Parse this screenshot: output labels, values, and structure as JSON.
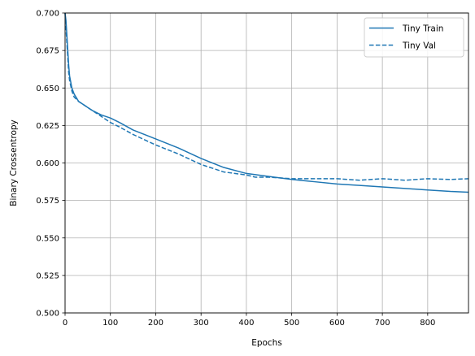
{
  "chart_data": {
    "type": "line",
    "title": "",
    "xlabel": "Epochs",
    "ylabel": "Binary Crossentropy",
    "xlim": [
      0,
      890
    ],
    "ylim": [
      0.5,
      0.7
    ],
    "xticks": [
      0,
      100,
      200,
      300,
      400,
      500,
      600,
      700,
      800
    ],
    "yticks": [
      0.5,
      0.525,
      0.55,
      0.575,
      0.6,
      0.625,
      0.65,
      0.675,
      0.7
    ],
    "xtick_labels": [
      "0",
      "100",
      "200",
      "300",
      "400",
      "500",
      "600",
      "700",
      "800"
    ],
    "ytick_labels": [
      "0.500",
      "0.525",
      "0.550",
      "0.575",
      "0.600",
      "0.625",
      "0.650",
      "0.675",
      "0.700"
    ],
    "grid": true,
    "legend_position": "top-right",
    "series": [
      {
        "name": "Tiny Train",
        "style": "solid",
        "color": "#1f77b4",
        "x": [
          0,
          2,
          4,
          6,
          8,
          10,
          15,
          20,
          30,
          40,
          50,
          60,
          80,
          100,
          120,
          150,
          200,
          250,
          300,
          350,
          400,
          450,
          500,
          550,
          600,
          650,
          700,
          750,
          800,
          850,
          890
        ],
        "y": [
          0.7,
          0.695,
          0.685,
          0.675,
          0.665,
          0.658,
          0.65,
          0.646,
          0.641,
          0.639,
          0.637,
          0.635,
          0.632,
          0.63,
          0.627,
          0.622,
          0.616,
          0.61,
          0.603,
          0.597,
          0.593,
          0.591,
          0.589,
          0.5875,
          0.586,
          0.585,
          0.584,
          0.583,
          0.582,
          0.581,
          0.5805
        ]
      },
      {
        "name": "Tiny Val",
        "style": "dashed",
        "color": "#1f77b4",
        "x": [
          0,
          2,
          4,
          6,
          8,
          10,
          15,
          20,
          30,
          40,
          50,
          60,
          80,
          100,
          120,
          150,
          200,
          250,
          300,
          350,
          400,
          420,
          450,
          500,
          550,
          580,
          600,
          650,
          700,
          750,
          800,
          850,
          890
        ],
        "y": [
          0.7,
          0.69,
          0.68,
          0.67,
          0.66,
          0.655,
          0.648,
          0.644,
          0.641,
          0.639,
          0.637,
          0.635,
          0.631,
          0.627,
          0.624,
          0.619,
          0.612,
          0.606,
          0.599,
          0.594,
          0.592,
          0.5905,
          0.5905,
          0.5895,
          0.5895,
          0.5895,
          0.5895,
          0.5885,
          0.5895,
          0.5885,
          0.5895,
          0.589,
          0.5895
        ]
      }
    ]
  }
}
